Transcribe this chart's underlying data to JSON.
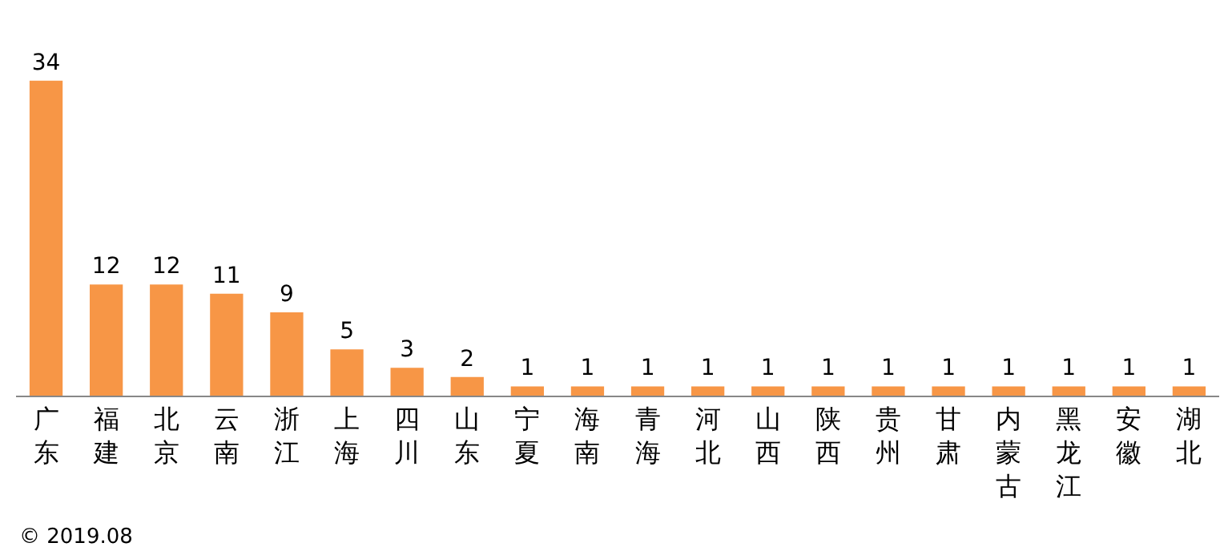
{
  "chart_data": {
    "type": "bar",
    "categories": [
      "广东",
      "福建",
      "北京",
      "云南",
      "浙江",
      "上海",
      "四川",
      "山东",
      "宁夏",
      "海南",
      "青海",
      "河北",
      "山西",
      "陕西",
      "贵州",
      "甘肃",
      "内蒙古",
      "黑龙江",
      "安徽",
      "湖北"
    ],
    "values": [
      34,
      12,
      12,
      11,
      9,
      5,
      3,
      2,
      1,
      1,
      1,
      1,
      1,
      1,
      1,
      1,
      1,
      1,
      1,
      1
    ],
    "color": "#f79646",
    "data_labels": true,
    "grid": false,
    "legend": false,
    "annotations": [
      "© 2019.08"
    ]
  }
}
